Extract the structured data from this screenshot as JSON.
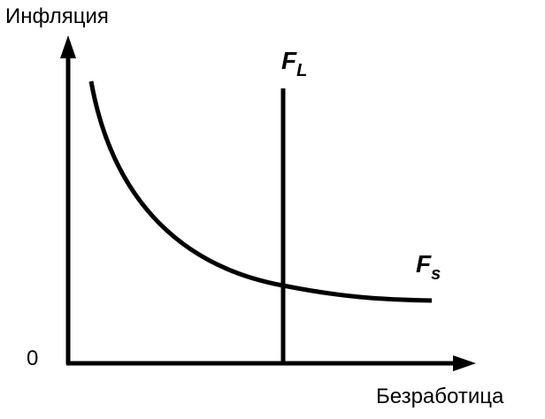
{
  "axes": {
    "y_label": "Инфляция",
    "x_label": "Безработица",
    "origin": "0"
  },
  "curves": [
    {
      "label": {
        "letter": "F",
        "subscript": "L"
      }
    },
    {
      "label": {
        "letter": "F",
        "subscript": "s"
      }
    }
  ]
}
